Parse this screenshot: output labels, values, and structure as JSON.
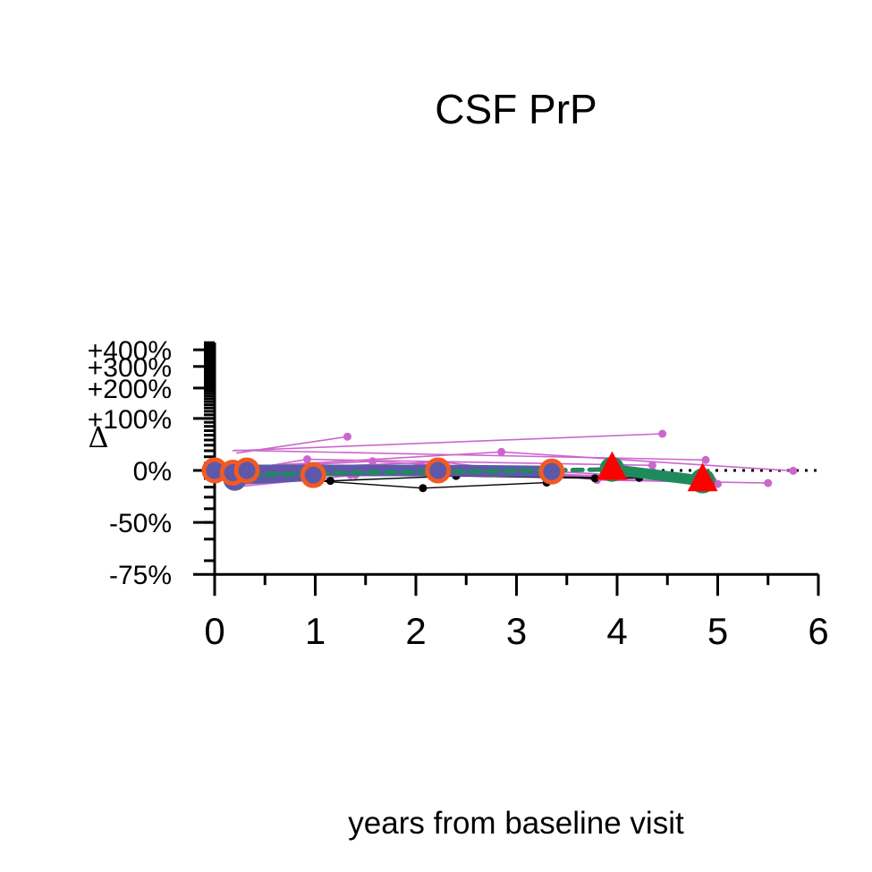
{
  "chart_data": {
    "type": "line",
    "title": "CSF PrP",
    "xlabel": "years from baseline visit",
    "ylabel": "Δ",
    "x_ticks": [
      "0",
      "1",
      "2",
      "3",
      "4",
      "5",
      "6"
    ],
    "y_tick_labels": [
      {
        "value": -75,
        "label": "-75%"
      },
      {
        "value": -50,
        "label": "-50%"
      },
      {
        "value": 0,
        "label": "0%"
      },
      {
        "value": 100,
        "label": "+100%"
      },
      {
        "value": 200,
        "label": "+200%"
      },
      {
        "value": 300,
        "label": "+300%"
      },
      {
        "value": 400,
        "label": "+400%"
      }
    ],
    "y_scale": "log-ratio",
    "xlim": [
      0,
      6
    ],
    "ylim": [
      -75,
      450
    ],
    "reference_line": {
      "y": 0,
      "style": "dotted",
      "x_from": 0,
      "x_to": 6
    },
    "colors": {
      "magenta": "#cc66cc",
      "black": "#000000",
      "purple": "#5e58a8",
      "green": "#1f8a5e",
      "orange": "#f05a24",
      "red": "#ff0000"
    },
    "series": [
      {
        "style": "thin-magenta",
        "points": [
          [
            0.18,
            30
          ],
          [
            4.45,
            63
          ]
        ]
      },
      {
        "style": "thin-magenta",
        "points": [
          [
            0.22,
            26
          ],
          [
            1.32,
            57
          ]
        ]
      },
      {
        "style": "thin-magenta",
        "points": [
          [
            0.2,
            31
          ],
          [
            4.88,
            15
          ]
        ]
      },
      {
        "style": "thin-magenta",
        "points": [
          [
            0.2,
            4
          ],
          [
            2.85,
            28
          ],
          [
            5.75,
            -0.5
          ]
        ]
      },
      {
        "style": "thin-magenta",
        "points": [
          [
            0.22,
            -1
          ],
          [
            0.92,
            16
          ],
          [
            4.35,
            7
          ]
        ]
      },
      {
        "style": "thin-magenta",
        "points": [
          [
            0.2,
            3
          ],
          [
            1.57,
            13
          ],
          [
            4.95,
            -12.5
          ]
        ]
      },
      {
        "style": "thin-magenta",
        "points": [
          [
            0.21,
            1
          ],
          [
            2.25,
            12
          ],
          [
            3.8,
            -12
          ],
          [
            5.5,
            -15.5
          ]
        ]
      },
      {
        "style": "thin-magenta",
        "points": [
          [
            0.18,
            4
          ],
          [
            2.05,
            7
          ],
          [
            3.0,
            -2
          ],
          [
            4.92,
            -13.5
          ]
        ]
      },
      {
        "style": "thin-magenta",
        "points": [
          [
            0.2,
            -2
          ],
          [
            1.35,
            -6
          ],
          [
            3.95,
            -9
          ]
        ]
      },
      {
        "style": "thin-magenta",
        "points": [
          [
            0.19,
            -5
          ],
          [
            2.0,
            3
          ],
          [
            5.0,
            -16.5
          ]
        ]
      },
      {
        "style": "thin-magenta",
        "points": [
          [
            0.27,
            -19
          ],
          [
            1.4,
            -6
          ],
          [
            4.1,
            -6.5
          ]
        ]
      },
      {
        "style": "thin-black",
        "points": [
          [
            0.2,
            -4
          ],
          [
            2.4,
            -7
          ],
          [
            4.22,
            -9.5
          ]
        ]
      },
      {
        "style": "thin-black",
        "points": [
          [
            0.2,
            -5
          ],
          [
            1.15,
            -13
          ],
          [
            2.4,
            -7
          ],
          [
            3.78,
            -10
          ]
        ]
      },
      {
        "style": "thin-black",
        "points": [
          [
            0.2,
            -6
          ],
          [
            2.07,
            -21
          ],
          [
            3.3,
            -15
          ]
        ]
      },
      {
        "style": "thick-purple",
        "points": [
          [
            0,
            0
          ],
          [
            0.2,
            -11
          ],
          [
            0.98,
            -6
          ]
        ]
      },
      {
        "style": "thick-purple",
        "points": [
          [
            0,
            0
          ],
          [
            0.3,
            0
          ],
          [
            2.22,
            0
          ],
          [
            3.35,
            -1.5
          ]
        ]
      },
      {
        "style": "dashed-green",
        "points": [
          [
            0.18,
            -6
          ],
          [
            1.5,
            -3
          ],
          [
            3.3,
            0
          ],
          [
            3.95,
            1.5
          ]
        ]
      },
      {
        "style": "thick-green",
        "points": [
          [
            3.95,
            1.5
          ],
          [
            4.85,
            -13
          ]
        ]
      }
    ],
    "markers": [
      {
        "shape": "circle-orange-ring",
        "x": 0,
        "y": 0
      },
      {
        "shape": "circle-orange-ring",
        "x": 0.18,
        "y": -3
      },
      {
        "shape": "circle-orange-ring",
        "x": 0.32,
        "y": 0
      },
      {
        "shape": "circle-orange-ring",
        "x": 0.98,
        "y": -6
      },
      {
        "shape": "circle-orange-ring",
        "x": 2.22,
        "y": 0
      },
      {
        "shape": "circle-orange-ring",
        "x": 3.35,
        "y": -1.5
      },
      {
        "shape": "circle-green",
        "x": 3.95,
        "y": 1.5
      },
      {
        "shape": "circle-green",
        "x": 4.85,
        "y": -13
      },
      {
        "shape": "triangle-red",
        "x": 3.95,
        "y": 3
      },
      {
        "shape": "triangle-red",
        "x": 4.85,
        "y": -11.5
      }
    ]
  }
}
